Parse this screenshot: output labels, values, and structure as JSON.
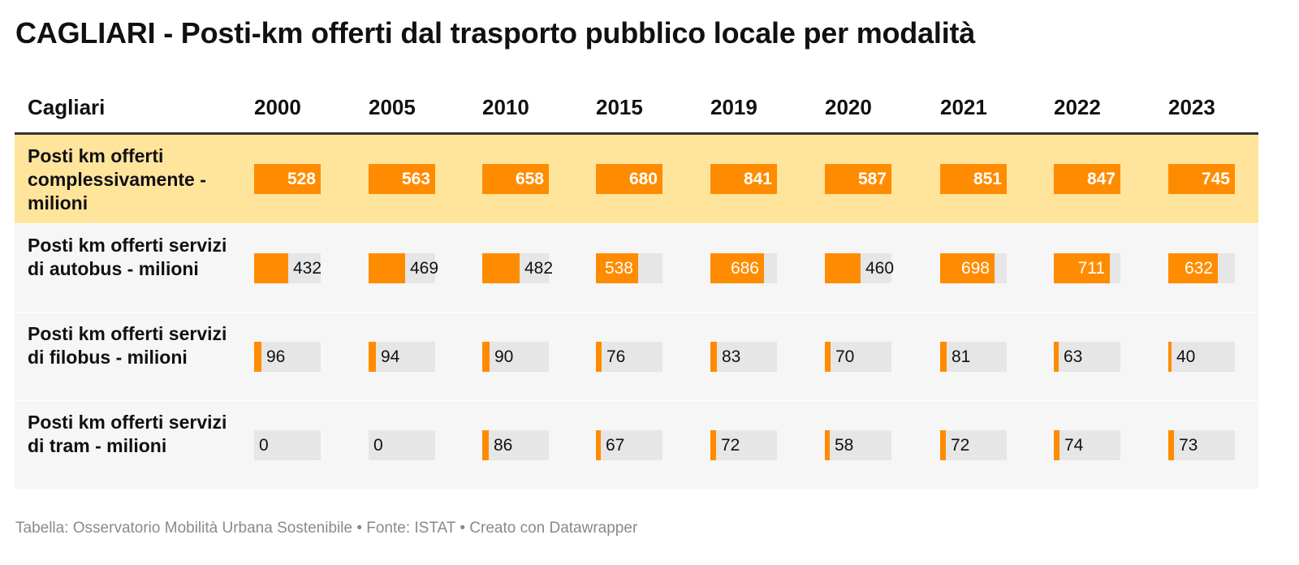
{
  "title": "CAGLIARI - Posti-km offerti dal trasporto pubblico locale per modalità",
  "footer": "Tabella: Osservatorio Mobilità Urbana Sostenibile • Fonte: ISTAT • Creato con Datawrapper",
  "colors": {
    "bar": "#ff8c00",
    "track": "#e6e6e6",
    "highlight": "#ffe49c",
    "alt": "#f6f6f6"
  },
  "chart_data": {
    "type": "table",
    "row_header": "Cagliari",
    "columns": [
      "2000",
      "2005",
      "2010",
      "2015",
      "2019",
      "2020",
      "2021",
      "2022",
      "2023"
    ],
    "bar_max": 851,
    "rows": [
      {
        "label": "Posti km offerti complessivamente - milioni",
        "values": [
          528,
          563,
          658,
          680,
          841,
          587,
          851,
          847,
          745
        ],
        "highlight": true
      },
      {
        "label": "Posti km offerti servizi di autobus - milioni",
        "values": [
          432,
          469,
          482,
          538,
          686,
          460,
          698,
          711,
          632
        ],
        "highlight": false
      },
      {
        "label": "Posti km offerti servizi di filobus - milioni",
        "values": [
          96,
          94,
          90,
          76,
          83,
          70,
          81,
          63,
          40
        ],
        "highlight": false
      },
      {
        "label": "Posti km offerti servizi di tram - milioni",
        "values": [
          0,
          0,
          86,
          67,
          72,
          58,
          72,
          74,
          73
        ],
        "highlight": false
      }
    ]
  }
}
